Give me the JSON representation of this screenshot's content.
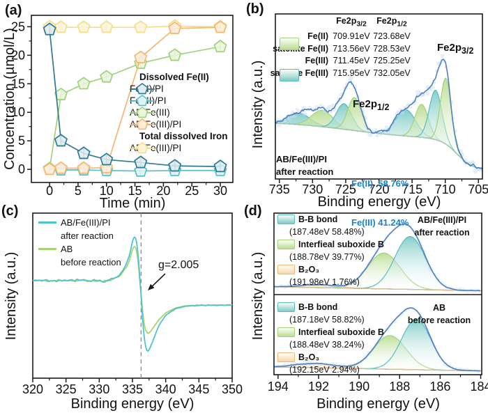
{
  "figure": {
    "panel_labels": {
      "a": "(a)",
      "b": "(b)",
      "c": "(c)",
      "d": "(d)"
    }
  },
  "chart_data": [
    {
      "id": "a",
      "type": "line",
      "xlabel": "Time (min)",
      "ylabel": "Concentration (µmol/L)",
      "xlim": [
        -3.2,
        32.2
      ],
      "ylim": [
        -2.3,
        27.0
      ],
      "xticks": [
        0,
        5,
        10,
        15,
        20,
        25,
        30
      ],
      "yticks": [
        0,
        5,
        10,
        15,
        20,
        25
      ],
      "x_minutes": [
        0,
        2,
        6,
        10,
        16,
        22,
        30
      ],
      "marker": "pentagon",
      "error_bar": 0.8,
      "legend_group1": "Dissolved Fe(II)",
      "legend_group2": "Total dissolved Iron",
      "series": [
        {
          "name": "Fe(II)/PI",
          "group": "Dissolved Fe(II)",
          "color": "#2e7a92",
          "fill": "#dfecf0",
          "values": [
            24.5,
            5.0,
            2.8,
            1.7,
            1.2,
            0.6,
            0.5
          ]
        },
        {
          "name": "Fe(III)/PI",
          "group": "Dissolved Fe(II)",
          "color": "#55bfc8",
          "fill": "#e1f4f5",
          "values": [
            0.1,
            -0.1,
            -0.1,
            -0.2,
            -0.3,
            -0.2,
            -0.2
          ]
        },
        {
          "name": "AB/Fe(III)",
          "group": "Dissolved Fe(II)",
          "color": "#9fd37a",
          "fill": "#eaf5de",
          "values": [
            0.1,
            13.1,
            15.0,
            16.2,
            18.6,
            20.0,
            21.5
          ]
        },
        {
          "name": "AB/Fe(III)/PI",
          "group": "Dissolved Fe(II)",
          "color": "#f4b671",
          "fill": "#fdeeda",
          "values": [
            0.0,
            0.2,
            0.2,
            0.3,
            19.6,
            24.7,
            24.9
          ]
        },
        {
          "name": "AB/Fe(III)/PI",
          "group": "Total dissolved Iron",
          "color": "#f6dd8d",
          "fill": "#fdf5d7",
          "values": [
            25.0,
            24.9,
            24.9,
            24.9,
            24.9,
            25.1,
            25.0
          ]
        }
      ]
    },
    {
      "id": "b",
      "type": "area",
      "xlabel": "Binding energy (eV)",
      "ylabel": "Intensity (a.u.)",
      "xlim": [
        735.6,
        704.4
      ],
      "xticks": [
        735,
        730,
        725,
        720,
        715,
        710,
        705
      ],
      "region_label_1": {
        "text": "Fe2p",
        "sub": "3/2"
      },
      "region_label_2": {
        "text": "Fe2p",
        "sub": "1/2"
      },
      "table": {
        "headers": [
          {
            "text": "Fe2p",
            "sub": "3/2"
          },
          {
            "text": "Fe2p",
            "sub": "1/2"
          }
        ],
        "rows": [
          {
            "label": "Fe(II)",
            "fe2p32": "709.91eV",
            "fe2p12": "723.68eV",
            "swatch": "green"
          },
          {
            "label": "satellite Fe(II)",
            "fe2p32": "713.56eV",
            "fe2p12": "728.53eV",
            "swatch": "green"
          },
          {
            "label": "Fe(III)",
            "fe2p32": "711.45eV",
            "fe2p12": "725.25eV",
            "swatch": "teal"
          },
          {
            "label": "satellite Fe(III)",
            "fe2p32": "715.95eV",
            "fe2p12": "732.05eV",
            "swatch": "teal"
          }
        ]
      },
      "sample": {
        "line1": "AB/Fe(III)/PI",
        "line2": "after reaction"
      },
      "results": {
        "line1": "Fe(II)  58.76%",
        "line2": "Fe(III) 41.24%",
        "color": "#1584cc"
      },
      "colors": {
        "envelope": "#4c7fc3",
        "scatter": "#cdddf0",
        "background": "#a9c3b1",
        "green_stroke": "#a3d378",
        "green_fill": "#b9dd92",
        "teal_stroke": "#58bcc1",
        "teal_fill": "#7ecbc7"
      },
      "peaks": [
        {
          "assign": "satellite Fe(III)",
          "color": "teal",
          "center": 732.05,
          "height": 0.07,
          "sigma": 1.7
        },
        {
          "assign": "satellite Fe(II)",
          "color": "green",
          "center": 728.53,
          "height": 0.1,
          "sigma": 1.6
        },
        {
          "assign": "Fe(III)",
          "color": "teal",
          "center": 725.25,
          "height": 0.155,
          "sigma": 1.15
        },
        {
          "assign": "Fe(II)",
          "color": "green",
          "center": 723.68,
          "height": 0.2,
          "sigma": 1.0
        },
        {
          "assign": "satellite Fe(III)",
          "color": "teal",
          "center": 715.95,
          "height": 0.16,
          "sigma": 1.5
        },
        {
          "assign": "satellite Fe(II)",
          "color": "green",
          "center": 713.56,
          "height": 0.2,
          "sigma": 1.0
        },
        {
          "assign": "Fe(III)",
          "color": "teal",
          "center": 711.45,
          "height": 0.3,
          "sigma": 0.95
        },
        {
          "assign": "Fe(II)",
          "color": "green",
          "center": 709.91,
          "height": 0.4,
          "sigma": 0.8
        }
      ]
    },
    {
      "id": "c",
      "type": "line",
      "xlabel": "Binding energy (eV)",
      "ylabel": "Intensity (a.u.)",
      "xlim": [
        320,
        350
      ],
      "xticks": [
        320,
        325,
        330,
        335,
        340,
        345,
        350
      ],
      "annotation": {
        "text": "g=2.005",
        "x": 336.3
      },
      "series": [
        {
          "name": "AB/Fe(III)/PI",
          "name2": "after reaction",
          "color": "#4fc2ce",
          "points": [
            [
              320,
              0
            ],
            [
              331.5,
              0
            ],
            [
              332,
              0.01
            ],
            [
              333,
              0.03
            ],
            [
              334,
              0.09
            ],
            [
              334.6,
              0.16
            ],
            [
              335.0,
              0.24
            ],
            [
              335.3,
              0.27
            ],
            [
              335.6,
              0.245
            ],
            [
              335.9,
              0.14
            ],
            [
              336.1,
              0.02
            ],
            [
              336.35,
              -0.12
            ],
            [
              336.6,
              -0.28
            ],
            [
              336.9,
              -0.385
            ],
            [
              337.2,
              -0.43
            ],
            [
              337.6,
              -0.415
            ],
            [
              338.2,
              -0.35
            ],
            [
              339,
              -0.27
            ],
            [
              340,
              -0.21
            ],
            [
              341.5,
              -0.17
            ],
            [
              343,
              -0.155
            ],
            [
              345,
              -0.15
            ],
            [
              350,
              -0.148
            ]
          ]
        },
        {
          "name": "AB",
          "name2": "before reaction",
          "color": "#a5d56e",
          "points": [
            [
              320,
              0
            ],
            [
              331.5,
              0
            ],
            [
              332,
              0.01
            ],
            [
              333,
              0.025
            ],
            [
              334,
              0.075
            ],
            [
              334.6,
              0.13
            ],
            [
              335.0,
              0.19
            ],
            [
              335.3,
              0.21
            ],
            [
              335.6,
              0.19
            ],
            [
              335.9,
              0.1
            ],
            [
              336.1,
              0.0
            ],
            [
              336.35,
              -0.1
            ],
            [
              336.6,
              -0.22
            ],
            [
              336.9,
              -0.295
            ],
            [
              337.3,
              -0.32
            ],
            [
              337.7,
              -0.31
            ],
            [
              338.2,
              -0.28
            ],
            [
              339,
              -0.235
            ],
            [
              340,
              -0.195
            ],
            [
              341.5,
              -0.165
            ],
            [
              343,
              -0.152
            ],
            [
              345,
              -0.149
            ],
            [
              350,
              -0.147
            ]
          ]
        }
      ]
    },
    {
      "id": "d",
      "type": "area",
      "xlabel": "Binding energy (eV)",
      "ylabel": "Intensity (a.u.)",
      "xlim": [
        194.2,
        183.95
      ],
      "xticks": [
        194,
        192,
        190,
        188,
        186,
        184
      ],
      "colors": {
        "envelope": "#4c7fc3",
        "scatter": "#cdddf0",
        "baseline": "#d9bb97",
        "green_stroke": "#a3d378",
        "green_fill": "#b9dd92",
        "teal_stroke": "#58bcc1",
        "teal_fill": "#7ecbc7",
        "orange_stroke": "#edb878",
        "orange_fill": "#f6d7a8"
      },
      "subpanels": [
        {
          "sample_line1": "AB/Fe(III)/PI",
          "sample_line2": "after reaction",
          "components": [
            {
              "name": "B-B bond",
              "detail": "(187.48eV 58.48%)",
              "color": "teal",
              "center": 187.48,
              "height": 0.65,
              "sigma": 0.75
            },
            {
              "name": "Interfieal suboxide B",
              "detail": "(188.78eV 39.77%)",
              "color": "green",
              "center": 188.78,
              "height": 0.44,
              "sigma": 0.8
            },
            {
              "name": "B₂O₃",
              "detail": "(191.98eV 1.76%)",
              "color": "orange",
              "center": 191.98,
              "height": 0.035,
              "sigma": 0.9
            }
          ]
        },
        {
          "sample_line1": "AB",
          "sample_line2": "before reaction",
          "components": [
            {
              "name": "B-B bond",
              "detail": "(187.18eV 58.82%)",
              "color": "teal",
              "center": 187.18,
              "height": 0.63,
              "sigma": 0.72
            },
            {
              "name": "Interfieal suboxide B",
              "detail": "(188.48eV 38.24%)",
              "color": "green",
              "center": 188.48,
              "height": 0.42,
              "sigma": 0.8
            },
            {
              "name": "B₂O₃",
              "detail": "(192.15eV 2.94%)",
              "color": "orange",
              "center": 192.15,
              "height": 0.055,
              "sigma": 1.0
            }
          ]
        }
      ]
    }
  ]
}
